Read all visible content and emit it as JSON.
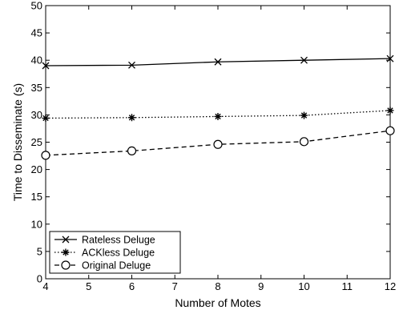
{
  "chart_data": {
    "type": "line",
    "title": "",
    "xlabel": "Number of Motes",
    "ylabel": "Time to Disseminate (s)",
    "xlim": [
      4,
      12
    ],
    "ylim": [
      0,
      50
    ],
    "xticks": [
      "4",
      "5",
      "6",
      "7",
      "8",
      "9",
      "10",
      "11",
      "12"
    ],
    "yticks": [
      "0",
      "5",
      "10",
      "15",
      "20",
      "25",
      "30",
      "35",
      "40",
      "45",
      "50"
    ],
    "grid": false,
    "legend_position": "bottom-left",
    "series": [
      {
        "name": "Rateless Deluge",
        "x": [
          4,
          6,
          8,
          10,
          12
        ],
        "y": [
          39.0,
          39.1,
          39.7,
          40.0,
          40.3
        ],
        "line_style": "solid",
        "marker": "x",
        "color": "#000000"
      },
      {
        "name": "ACKless Deluge",
        "x": [
          4,
          6,
          8,
          10,
          12
        ],
        "y": [
          29.4,
          29.5,
          29.7,
          29.9,
          30.8
        ],
        "line_style": "dotted",
        "marker": "asterisk",
        "color": "#000000"
      },
      {
        "name": "Original Deluge",
        "x": [
          4,
          6,
          8,
          10,
          12
        ],
        "y": [
          22.6,
          23.4,
          24.6,
          25.1,
          27.1
        ],
        "line_style": "dashed",
        "marker": "circle",
        "color": "#000000"
      }
    ]
  }
}
